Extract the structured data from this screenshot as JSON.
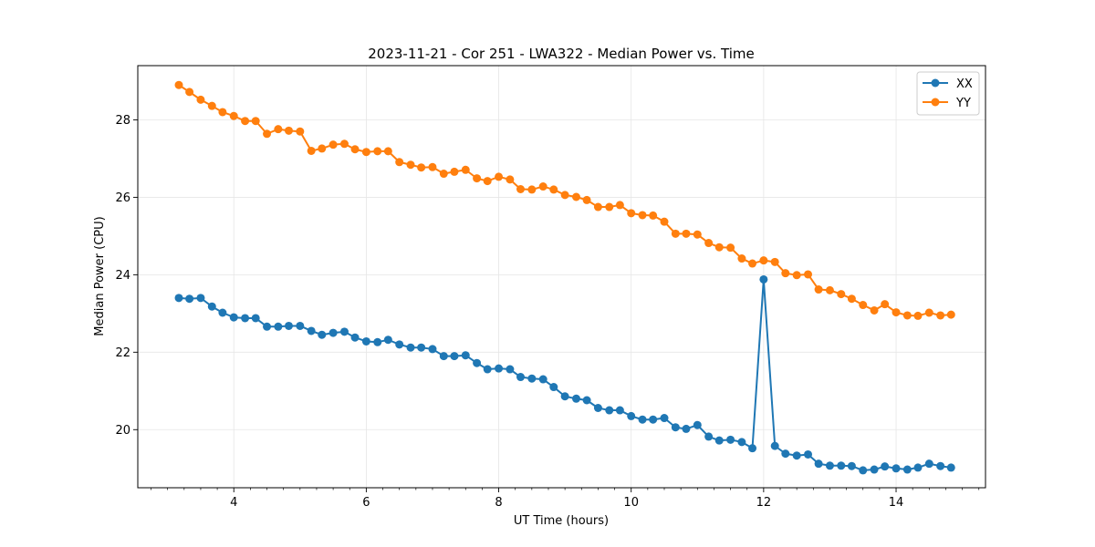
{
  "chart_data": {
    "type": "line",
    "title": "2023-11-21 - Cor 251 - LWA322 - Median Power vs. Time",
    "xlabel": "UT Time (hours)",
    "ylabel": "Median Power (CPU)",
    "xlim": [
      2.55,
      15.35
    ],
    "ylim": [
      18.5,
      29.4
    ],
    "xticks": [
      4,
      6,
      8,
      10,
      12,
      14
    ],
    "xtick_labels": [
      "4",
      "6",
      "8",
      "10",
      "12",
      "14"
    ],
    "yticks": [
      20,
      22,
      24,
      26,
      28
    ],
    "ytick_labels": [
      "20",
      "22",
      "24",
      "26",
      "28"
    ],
    "grid": true,
    "legend_position": "top-right",
    "x": [
      3.17,
      3.33,
      3.5,
      3.67,
      3.83,
      4.0,
      4.17,
      4.33,
      4.5,
      4.67,
      4.83,
      5.0,
      5.17,
      5.33,
      5.5,
      5.67,
      5.83,
      6.0,
      6.17,
      6.33,
      6.5,
      6.67,
      6.83,
      7.0,
      7.17,
      7.33,
      7.5,
      7.67,
      7.83,
      8.0,
      8.17,
      8.33,
      8.5,
      8.67,
      8.83,
      9.0,
      9.17,
      9.33,
      9.5,
      9.67,
      9.83,
      10.0,
      10.17,
      10.33,
      10.5,
      10.67,
      10.83,
      11.0,
      11.17,
      11.33,
      11.5,
      11.67,
      11.83,
      12.0,
      12.17,
      12.33,
      12.5,
      12.67,
      12.83,
      13.0,
      13.17,
      13.33,
      13.5,
      13.67,
      13.83,
      14.0,
      14.17,
      14.33,
      14.5,
      14.67,
      14.83
    ],
    "series": [
      {
        "name": "XX",
        "color": "#1f77b4",
        "values": [
          23.4,
          23.38,
          23.4,
          23.18,
          23.02,
          22.9,
          22.88,
          22.88,
          22.66,
          22.66,
          22.68,
          22.68,
          22.55,
          22.45,
          22.5,
          22.53,
          22.38,
          22.28,
          22.26,
          22.32,
          22.2,
          22.12,
          22.12,
          22.08,
          21.9,
          21.9,
          21.92,
          21.72,
          21.56,
          21.58,
          21.56,
          21.36,
          21.32,
          21.3,
          21.1,
          20.86,
          20.8,
          20.76,
          20.56,
          20.5,
          20.5,
          20.35,
          20.26,
          20.26,
          20.3,
          20.06,
          20.02,
          20.12,
          19.82,
          19.72,
          19.74,
          19.68,
          19.52,
          23.88,
          19.58,
          19.38,
          19.33,
          19.36,
          19.12,
          19.07,
          19.07,
          19.06,
          18.95,
          18.97,
          19.05,
          19.0,
          18.97,
          19.02,
          19.12,
          19.06,
          19.02
        ]
      },
      {
        "name": "YY",
        "color": "#ff7f0e",
        "values": [
          28.9,
          28.72,
          28.52,
          28.36,
          28.2,
          28.1,
          27.97,
          27.97,
          27.64,
          27.76,
          27.72,
          27.7,
          27.2,
          27.26,
          27.36,
          27.38,
          27.24,
          27.17,
          27.19,
          27.19,
          26.91,
          26.84,
          26.77,
          26.78,
          26.61,
          26.66,
          26.71,
          26.49,
          26.42,
          26.53,
          26.46,
          26.21,
          26.2,
          26.28,
          26.2,
          26.06,
          26.01,
          25.93,
          25.75,
          25.75,
          25.8,
          25.59,
          25.54,
          25.53,
          25.37,
          25.06,
          25.06,
          25.04,
          24.82,
          24.71,
          24.7,
          24.42,
          24.29,
          24.37,
          24.33,
          24.04,
          23.99,
          24.01,
          23.62,
          23.6,
          23.5,
          23.38,
          23.22,
          23.08,
          23.24,
          23.03,
          22.95,
          22.94,
          23.02,
          22.95,
          22.97
        ]
      }
    ]
  }
}
